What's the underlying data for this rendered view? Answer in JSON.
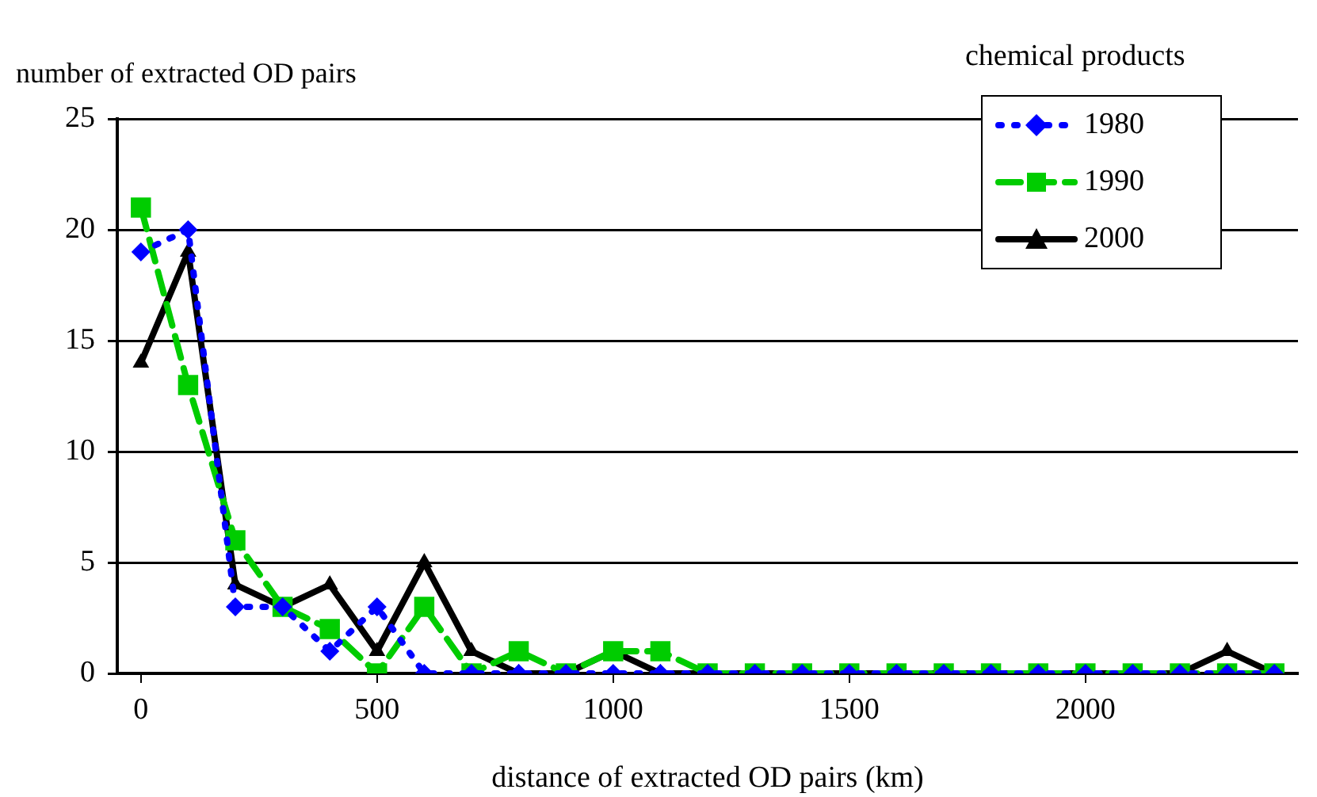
{
  "chart_data": {
    "type": "line",
    "xlabel": "distance of extracted OD pairs (km)",
    "ylabel": "number of extracted OD pairs",
    "legend_title": "chemical products",
    "x": [
      0,
      100,
      200,
      300,
      400,
      500,
      600,
      700,
      800,
      900,
      1000,
      1100,
      1200,
      1300,
      1400,
      1500,
      1600,
      1700,
      1800,
      1900,
      2000,
      2100,
      2200,
      2300,
      2400
    ],
    "series": [
      {
        "name": "1980",
        "color": "#0000ff",
        "marker": "diamond",
        "line_style": "dotted",
        "values": [
          19,
          20,
          3,
          3,
          1,
          3,
          0,
          0,
          0,
          0,
          0,
          0,
          0,
          0,
          0,
          0,
          0,
          0,
          0,
          0,
          0,
          0,
          0,
          0,
          0
        ]
      },
      {
        "name": "1990",
        "color": "#00cc00",
        "marker": "square",
        "line_style": "dashed",
        "values": [
          21,
          13,
          6,
          3,
          2,
          0,
          3,
          0,
          1,
          0,
          1,
          1,
          0,
          0,
          0,
          0,
          0,
          0,
          0,
          0,
          0,
          0,
          0,
          0,
          0
        ]
      },
      {
        "name": "2000",
        "color": "#000000",
        "marker": "triangle",
        "line_style": "solid",
        "values": [
          14,
          19,
          4,
          3,
          4,
          1,
          5,
          1,
          0,
          0,
          1,
          0,
          0,
          0,
          0,
          0,
          0,
          0,
          0,
          0,
          0,
          0,
          0,
          1,
          0
        ]
      }
    ],
    "xlim": [
      -50,
      2450
    ],
    "xticks": [
      0,
      500,
      1000,
      1500,
      2000
    ],
    "ylim": [
      0,
      25
    ],
    "yticks": [
      0,
      5,
      10,
      15,
      20,
      25
    ],
    "grid": "y",
    "legend": "top right"
  }
}
